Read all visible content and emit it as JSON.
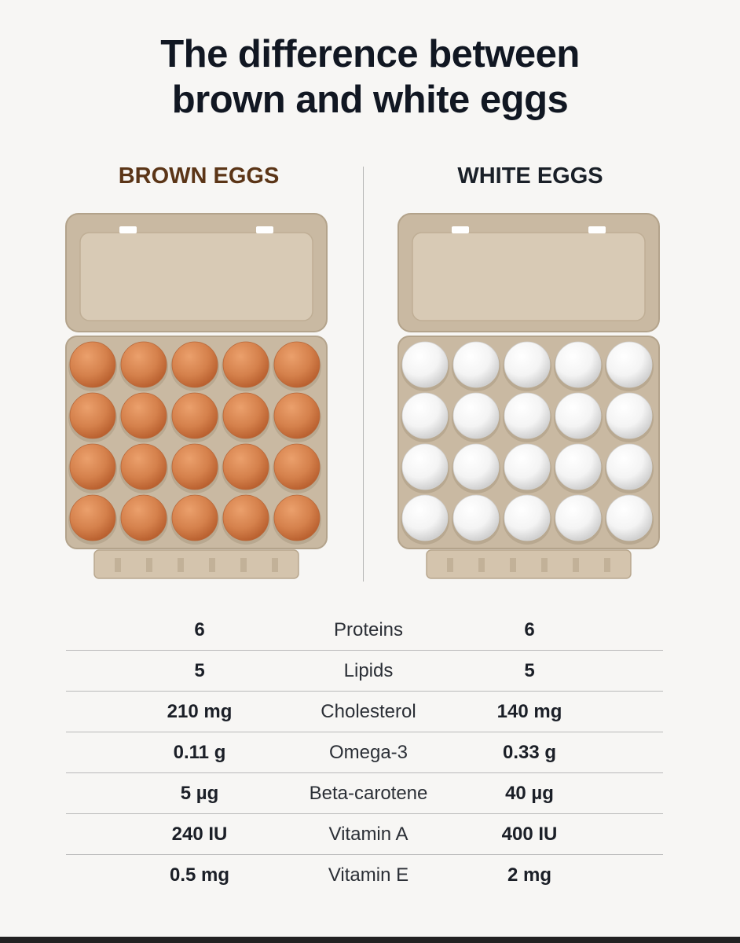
{
  "title_line1": "The difference between",
  "title_line2": "brown and white eggs",
  "columns": {
    "left": "BROWN EGGS",
    "right": "WHITE EGGS"
  },
  "colors": {
    "brown_heading": "#5b3517",
    "brown_egg": "#d5814c",
    "white_egg": "#f4f4f4",
    "carton": "#c9b9a2"
  },
  "cartons": {
    "rows": 4,
    "cols": 5
  },
  "rows": [
    {
      "brown": "6",
      "label": "Proteins",
      "white": "6"
    },
    {
      "brown": "5",
      "label": "Lipids",
      "white": "5"
    },
    {
      "brown": "210 mg",
      "label": "Cholesterol",
      "white": "140 mg"
    },
    {
      "brown": "0.11 g",
      "label": "Omega-3",
      "white": "0.33 g"
    },
    {
      "brown": "5 µg",
      "label": "Beta-carotene",
      "white": "40 µg"
    },
    {
      "brown": "240 IU",
      "label": "Vitamin A",
      "white": "400 IU"
    },
    {
      "brown": "0.5 mg",
      "label": "Vitamin E",
      "white": "2 mg"
    }
  ]
}
